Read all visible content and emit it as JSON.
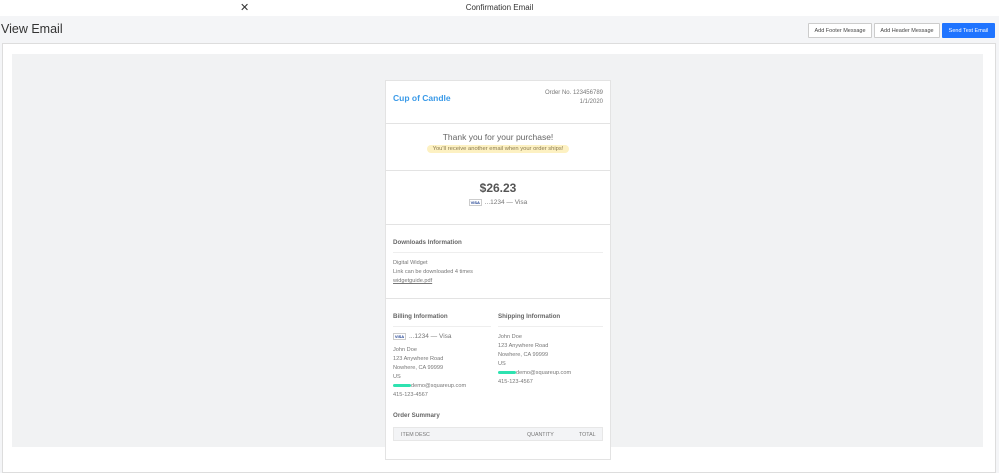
{
  "window": {
    "title": "Confirmation Email",
    "close_icon": "close-icon"
  },
  "page": {
    "title": "View Email"
  },
  "toolbar": {
    "add_footer": "Add Footer Message",
    "add_header": "Add Header Message",
    "send_test": "Send Test Email",
    "accent": "#1f74ff"
  },
  "email": {
    "brand": "Cup of Candle",
    "order_no": "Order No. 123456789",
    "order_date": "1/1/2020",
    "thanks": "Thank you for your purchase!",
    "ships_note": "You'll receive another email when your order ships!",
    "amount": "$26.23",
    "card_badge": "VISA",
    "payment": "...1234 — Visa",
    "downloads": {
      "heading": "Downloads Information",
      "item": "Digital Widget",
      "limit": "Link can be downloaded 4 times",
      "file": "widgetguide.pdf"
    },
    "billing": {
      "heading": "Billing Information",
      "payment": "...1234 — Visa",
      "name": "John Doe",
      "street": "123 Anywhere Road",
      "city": "Nowhere, CA 99999",
      "country": "US",
      "email": "demo@squareup.com",
      "phone": "415-123-4567"
    },
    "shipping": {
      "heading": "Shipping Information",
      "name": "John Doe",
      "street": "123 Anywhere Road",
      "city": "Nowhere, CA 99999",
      "country": "US",
      "email": "demo@squareup.com",
      "phone": "415-123-4567"
    },
    "summary": {
      "heading": "Order Summary",
      "columns": [
        "ITEM DESC",
        "QUANTITY",
        "TOTAL"
      ]
    }
  }
}
